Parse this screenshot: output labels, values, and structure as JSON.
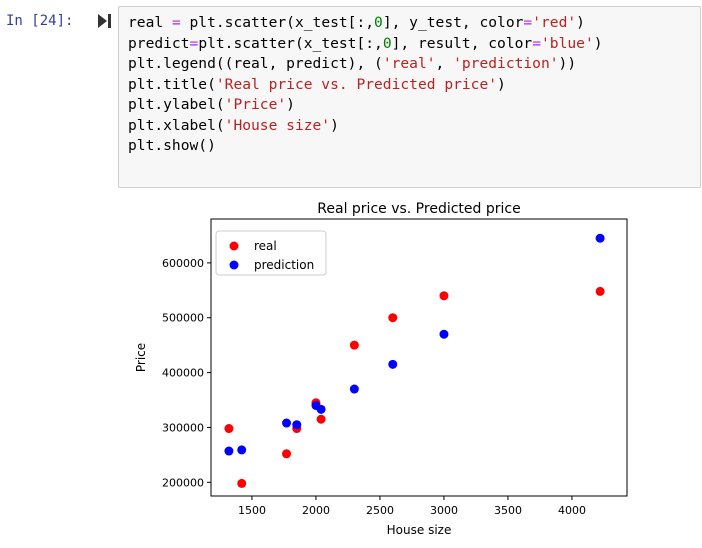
{
  "cell": {
    "prompt": "In [24]:",
    "code_lines": [
      [
        {
          "t": "real "
        },
        {
          "t": "=",
          "c": "o"
        },
        {
          "t": " plt.scatter(x_test[:,"
        },
        {
          "t": "0",
          "c": "n"
        },
        {
          "t": "], y_test, color"
        },
        {
          "t": "=",
          "c": "o"
        },
        {
          "t": "'red'",
          "c": "s"
        },
        {
          "t": ")"
        }
      ],
      [
        {
          "t": "predict"
        },
        {
          "t": "=",
          "c": "o"
        },
        {
          "t": "plt.scatter(x_test[:,"
        },
        {
          "t": "0",
          "c": "n"
        },
        {
          "t": "], result, color"
        },
        {
          "t": "=",
          "c": "o"
        },
        {
          "t": "'blue'",
          "c": "s"
        },
        {
          "t": ")"
        }
      ],
      [
        {
          "t": "plt.legend((real, predict), ("
        },
        {
          "t": "'real'",
          "c": "s"
        },
        {
          "t": ", "
        },
        {
          "t": "'prediction'",
          "c": "s"
        },
        {
          "t": "))"
        }
      ],
      [
        {
          "t": "plt.title("
        },
        {
          "t": "'Real price vs. Predicted price'",
          "c": "s"
        },
        {
          "t": ")"
        }
      ],
      [
        {
          "t": "plt.ylabel("
        },
        {
          "t": "'Price'",
          "c": "s"
        },
        {
          "t": ")"
        }
      ],
      [
        {
          "t": "plt.xlabel("
        },
        {
          "t": "'House size'",
          "c": "s"
        },
        {
          "t": ")"
        }
      ],
      [
        {
          "t": "plt.show()"
        }
      ]
    ]
  },
  "colors": {
    "prompt": "#303f9f",
    "string": "#ba2121",
    "number": "#008000",
    "operator": "#aa22ff",
    "real": "#ff0000",
    "prediction": "#0000ff"
  },
  "chart_data": {
    "type": "scatter",
    "title": "Real price vs. Predicted price",
    "xlabel": "House size",
    "ylabel": "Price",
    "xlim": [
      1180,
      4430
    ],
    "ylim": [
      175000,
      680000
    ],
    "xticks": [
      1500,
      2000,
      2500,
      3000,
      3500,
      4000
    ],
    "yticks": [
      200000,
      300000,
      400000,
      500000,
      600000
    ],
    "legend_position": "top-left",
    "series": [
      {
        "name": "real",
        "color": "#ff0000",
        "points": [
          [
            1320,
            298000
          ],
          [
            1420,
            198000
          ],
          [
            1770,
            252000
          ],
          [
            1850,
            298000
          ],
          [
            2000,
            345000
          ],
          [
            2040,
            315000
          ],
          [
            2300,
            450000
          ],
          [
            2600,
            500000
          ],
          [
            3000,
            540000
          ],
          [
            4220,
            548000
          ]
        ]
      },
      {
        "name": "prediction",
        "color": "#0000ff",
        "points": [
          [
            1320,
            257000
          ],
          [
            1420,
            259000
          ],
          [
            1770,
            308000
          ],
          [
            1850,
            305000
          ],
          [
            2000,
            340000
          ],
          [
            2040,
            333000
          ],
          [
            2300,
            370000
          ],
          [
            2600,
            415000
          ],
          [
            3000,
            470000
          ],
          [
            4220,
            645000
          ]
        ]
      }
    ]
  }
}
